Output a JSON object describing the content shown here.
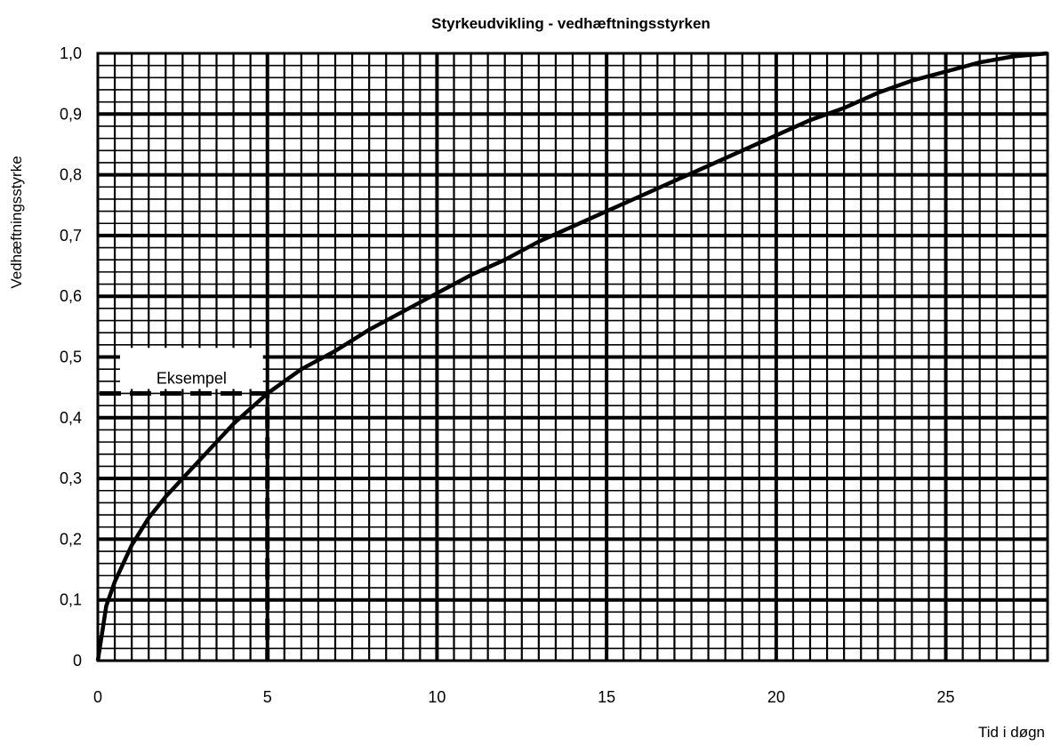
{
  "chart_data": {
    "type": "line",
    "title": "Styrkeudvikling - vedhæftningsstyrken",
    "xlabel": "Tid i døgn",
    "ylabel": "Vedhæftningsstyrke",
    "xlim": [
      0,
      28
    ],
    "ylim": [
      0,
      1.0
    ],
    "x_ticks": [
      0,
      5,
      10,
      15,
      20,
      25
    ],
    "x_tick_labels": [
      "0",
      "5",
      "10",
      "15",
      "20",
      "25"
    ],
    "y_ticks": [
      0,
      0.1,
      0.2,
      0.3,
      0.4,
      0.5,
      0.6,
      0.7,
      0.8,
      0.9,
      1.0
    ],
    "y_tick_labels": [
      "0",
      "0,1",
      "0,2",
      "0,3",
      "0,4",
      "0,5",
      "0,6",
      "0,7",
      "0,8",
      "0,9",
      "1,0"
    ],
    "grid": true,
    "series": [
      {
        "x": [
          0,
          0.25,
          0.5,
          1,
          1.5,
          2,
          3,
          4,
          5,
          6,
          7,
          8,
          9,
          10,
          11,
          12,
          13,
          14,
          15,
          16,
          17,
          18,
          19,
          20,
          21,
          22,
          23,
          24,
          25,
          26,
          27,
          28
        ],
        "y": [
          0,
          0.09,
          0.13,
          0.19,
          0.235,
          0.27,
          0.33,
          0.39,
          0.44,
          0.48,
          0.51,
          0.545,
          0.575,
          0.605,
          0.635,
          0.66,
          0.69,
          0.715,
          0.74,
          0.765,
          0.79,
          0.815,
          0.84,
          0.865,
          0.89,
          0.91,
          0.935,
          0.955,
          0.97,
          0.985,
          0.995,
          1.0
        ]
      }
    ],
    "annotations": [
      {
        "text": "Eksempel",
        "x": 5,
        "y": 0.44
      }
    ]
  }
}
